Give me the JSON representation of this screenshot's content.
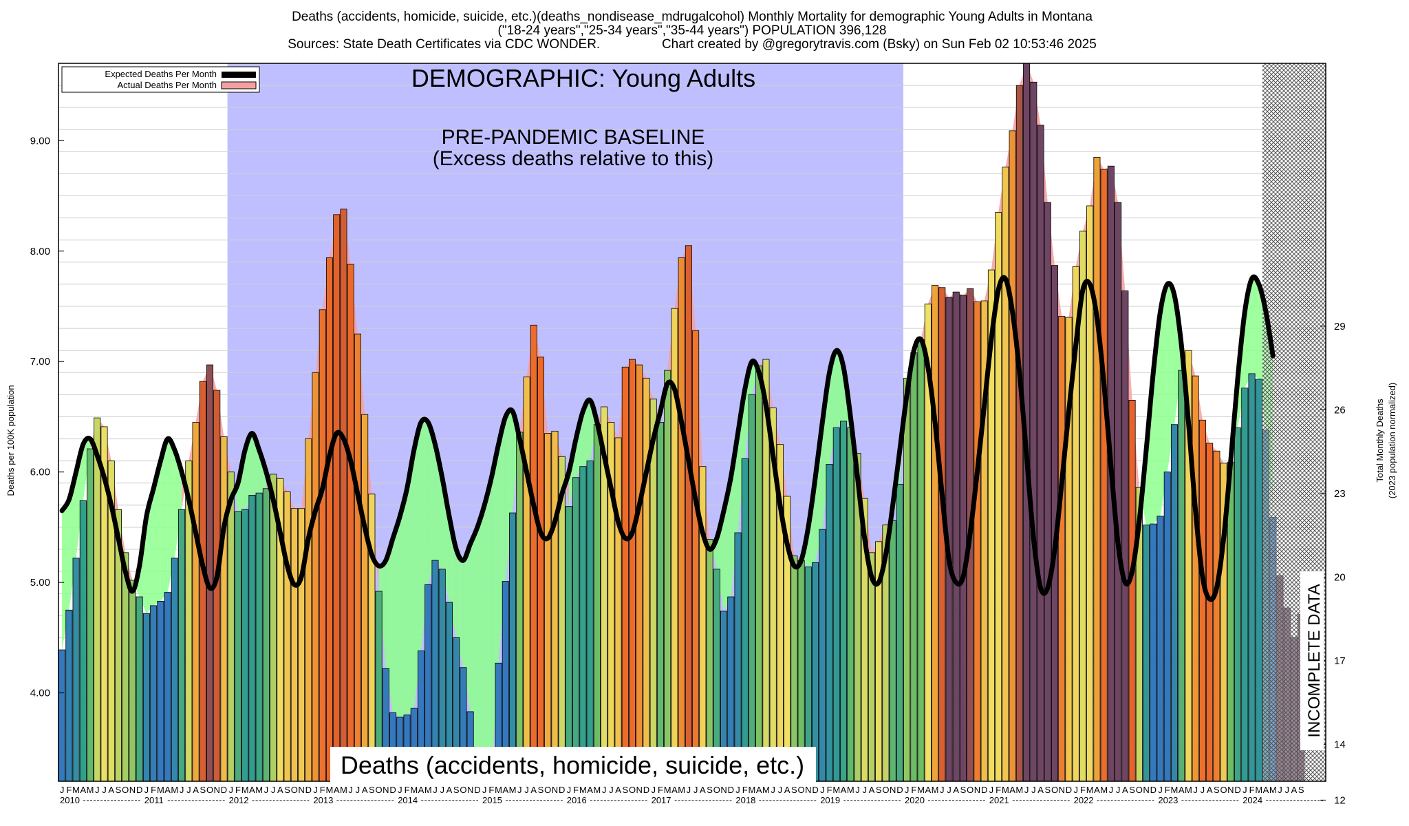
{
  "header": {
    "line1": "Deaths (accidents, homicide, suicide, etc.)(deaths_nondisease_mdrugalcohol) Monthly Mortality for demographic Young Adults in Montana",
    "line2": "(\"18-24 years\",\"25-34 years\",\"35-44 years\") POPULATION 396,128",
    "line3": "Sources: State Death Certificates via CDC WONDER.                 Chart created by @gregorytravis.com (Bsky) on Sun Feb 02 10:53:46 2025"
  },
  "legend": {
    "expected": "Expected Deaths Per Month",
    "actual": "Actual Deaths Per Month"
  },
  "annotations": {
    "demographic": "DEMOGRAPHIC: Young Adults",
    "baseline_line1": "PRE-PANDEMIC BASELINE",
    "baseline_line2": "(Excess deaths relative to this)",
    "category": "Deaths (accidents, homicide, suicide, etc.)",
    "incomplete": "INCOMPLETE DATA"
  },
  "axes": {
    "ylabel_left": "Deaths per 100K population",
    "ylabel_right_1": "Total Monthly Deaths",
    "ylabel_right_2": "(2023 population normalized)",
    "yticks_left": [
      "4.00",
      "5.00",
      "6.00",
      "7.00",
      "8.00",
      "9.00"
    ],
    "yticks_right": [
      "12",
      "14",
      "17",
      "20",
      "23",
      "26",
      "29"
    ],
    "month_letters": "JFMAMJJASOND",
    "years": [
      "2010",
      "2011",
      "2012",
      "2013",
      "2014",
      "2015",
      "2016",
      "2017",
      "2018",
      "2019",
      "2020",
      "2021",
      "2022",
      "2023",
      "2024"
    ]
  },
  "colors": {
    "baseline_band": "#bfbfff",
    "expected_line": "#000000",
    "excess_fill": "#f4a0a0",
    "deficit_fill": "#8cff8c",
    "incomplete_hatch": "#777777"
  },
  "chart_data": {
    "type": "bar",
    "start": "2010-01",
    "ylim": [
      3.2,
      9.7
    ],
    "right_axis_scale": "total monthly deaths = rate x 3.96128",
    "baseline_years": [
      2012,
      2019
    ],
    "incomplete_from": "2024-04",
    "actual": [
      4.39,
      4.75,
      5.22,
      5.74,
      6.21,
      6.49,
      6.41,
      6.1,
      5.66,
      5.27,
      5.02,
      4.87,
      4.72,
      4.79,
      4.83,
      4.91,
      5.22,
      5.66,
      6.1,
      6.45,
      6.82,
      6.97,
      6.74,
      6.32,
      6.0,
      5.64,
      5.66,
      5.79,
      5.81,
      5.85,
      5.98,
      5.94,
      5.82,
      5.67,
      5.67,
      6.3,
      6.9,
      7.47,
      7.94,
      8.33,
      8.38,
      7.88,
      7.25,
      6.52,
      5.8,
      4.92,
      4.22,
      3.82,
      3.78,
      3.8,
      3.86,
      4.38,
      4.98,
      5.2,
      5.12,
      4.82,
      4.5,
      4.23,
      3.83,
      3.2,
      3.2,
      3.2,
      4.27,
      5.01,
      5.63,
      6.36,
      6.86,
      7.33,
      7.04,
      6.35,
      6.37,
      6.14,
      5.69,
      5.95,
      6.05,
      6.1,
      6.43,
      6.59,
      6.45,
      6.31,
      6.95,
      7.02,
      6.97,
      6.85,
      6.66,
      6.45,
      6.92,
      7.48,
      7.94,
      8.05,
      7.28,
      6.05,
      5.39,
      5.12,
      4.74,
      4.87,
      5.45,
      6.12,
      6.7,
      6.96,
      7.02,
      6.58,
      6.25,
      5.78,
      5.24,
      5.2,
      5.14,
      5.18,
      5.48,
      6.07,
      6.4,
      6.46,
      6.4,
      6.17,
      5.76,
      5.27,
      5.37,
      5.52,
      5.56,
      5.89,
      6.85,
      7.08,
      7.2,
      7.52,
      7.69,
      7.67,
      7.58,
      7.63,
      7.6,
      7.66,
      7.54,
      7.55,
      7.83,
      8.35,
      8.76,
      9.09,
      9.5,
      9.7,
      9.53,
      9.14,
      8.44,
      7.87,
      7.41,
      7.4,
      7.86,
      8.18,
      8.41,
      8.85,
      8.74,
      8.77,
      8.44,
      7.64,
      6.65,
      5.86,
      5.52,
      5.53,
      5.6,
      6.0,
      6.43,
      6.92,
      7.1,
      6.87,
      6.47,
      6.26,
      6.19,
      6.08,
      6.09,
      6.4,
      6.76,
      6.89,
      6.84,
      6.38,
      5.59,
      5.06,
      4.77,
      4.5,
      4.71
    ],
    "expected": [
      5.65,
      5.75,
      6.0,
      6.25,
      6.3,
      6.15,
      5.95,
      5.7,
      5.4,
      5.1,
      4.92,
      5.15,
      5.6,
      5.85,
      6.1,
      6.3,
      6.2,
      6.0,
      5.75,
      5.45,
      5.15,
      4.95,
      5.05,
      5.5,
      5.75,
      5.9,
      6.2,
      6.35,
      6.2,
      6.0,
      5.75,
      5.45,
      5.15,
      4.98,
      5.05,
      5.4,
      5.65,
      5.85,
      6.15,
      6.35,
      6.3,
      6.1,
      5.8,
      5.5,
      5.25,
      5.15,
      5.2,
      5.4,
      5.6,
      5.85,
      6.2,
      6.45,
      6.45,
      6.25,
      5.95,
      5.6,
      5.3,
      5.2,
      5.35,
      5.5,
      5.7,
      5.95,
      6.25,
      6.5,
      6.55,
      6.3,
      6.0,
      5.7,
      5.45,
      5.4,
      5.55,
      5.8,
      6.0,
      6.3,
      6.55,
      6.65,
      6.45,
      6.15,
      5.85,
      5.55,
      5.4,
      5.45,
      5.7,
      6.0,
      6.3,
      6.55,
      6.8,
      6.75,
      6.45,
      6.1,
      5.75,
      5.45,
      5.3,
      5.4,
      5.65,
      5.95,
      6.35,
      6.75,
      7.0,
      6.9,
      6.6,
      6.15,
      5.7,
      5.35,
      5.15,
      5.2,
      5.5,
      5.95,
      6.45,
      6.9,
      7.1,
      6.95,
      6.5,
      5.95,
      5.4,
      5.05,
      5.0,
      5.25,
      5.7,
      6.2,
      6.7,
      7.1,
      7.2,
      6.95,
      6.45,
      5.8,
      5.2,
      5.0,
      5.05,
      5.45,
      6.0,
      6.6,
      7.2,
      7.65,
      7.75,
      7.45,
      6.9,
      6.15,
      5.4,
      4.95,
      4.95,
      5.3,
      5.9,
      6.55,
      7.15,
      7.65,
      7.7,
      7.4,
      6.8,
      6.05,
      5.35,
      5.0,
      5.1,
      5.55,
      6.2,
      6.9,
      7.45,
      7.7,
      7.6,
      7.15,
      6.45,
      5.65,
      5.05,
      4.85,
      4.95,
      5.4,
      6.1,
      6.85,
      7.45,
      7.75,
      7.7,
      7.45,
      7.05
    ]
  }
}
